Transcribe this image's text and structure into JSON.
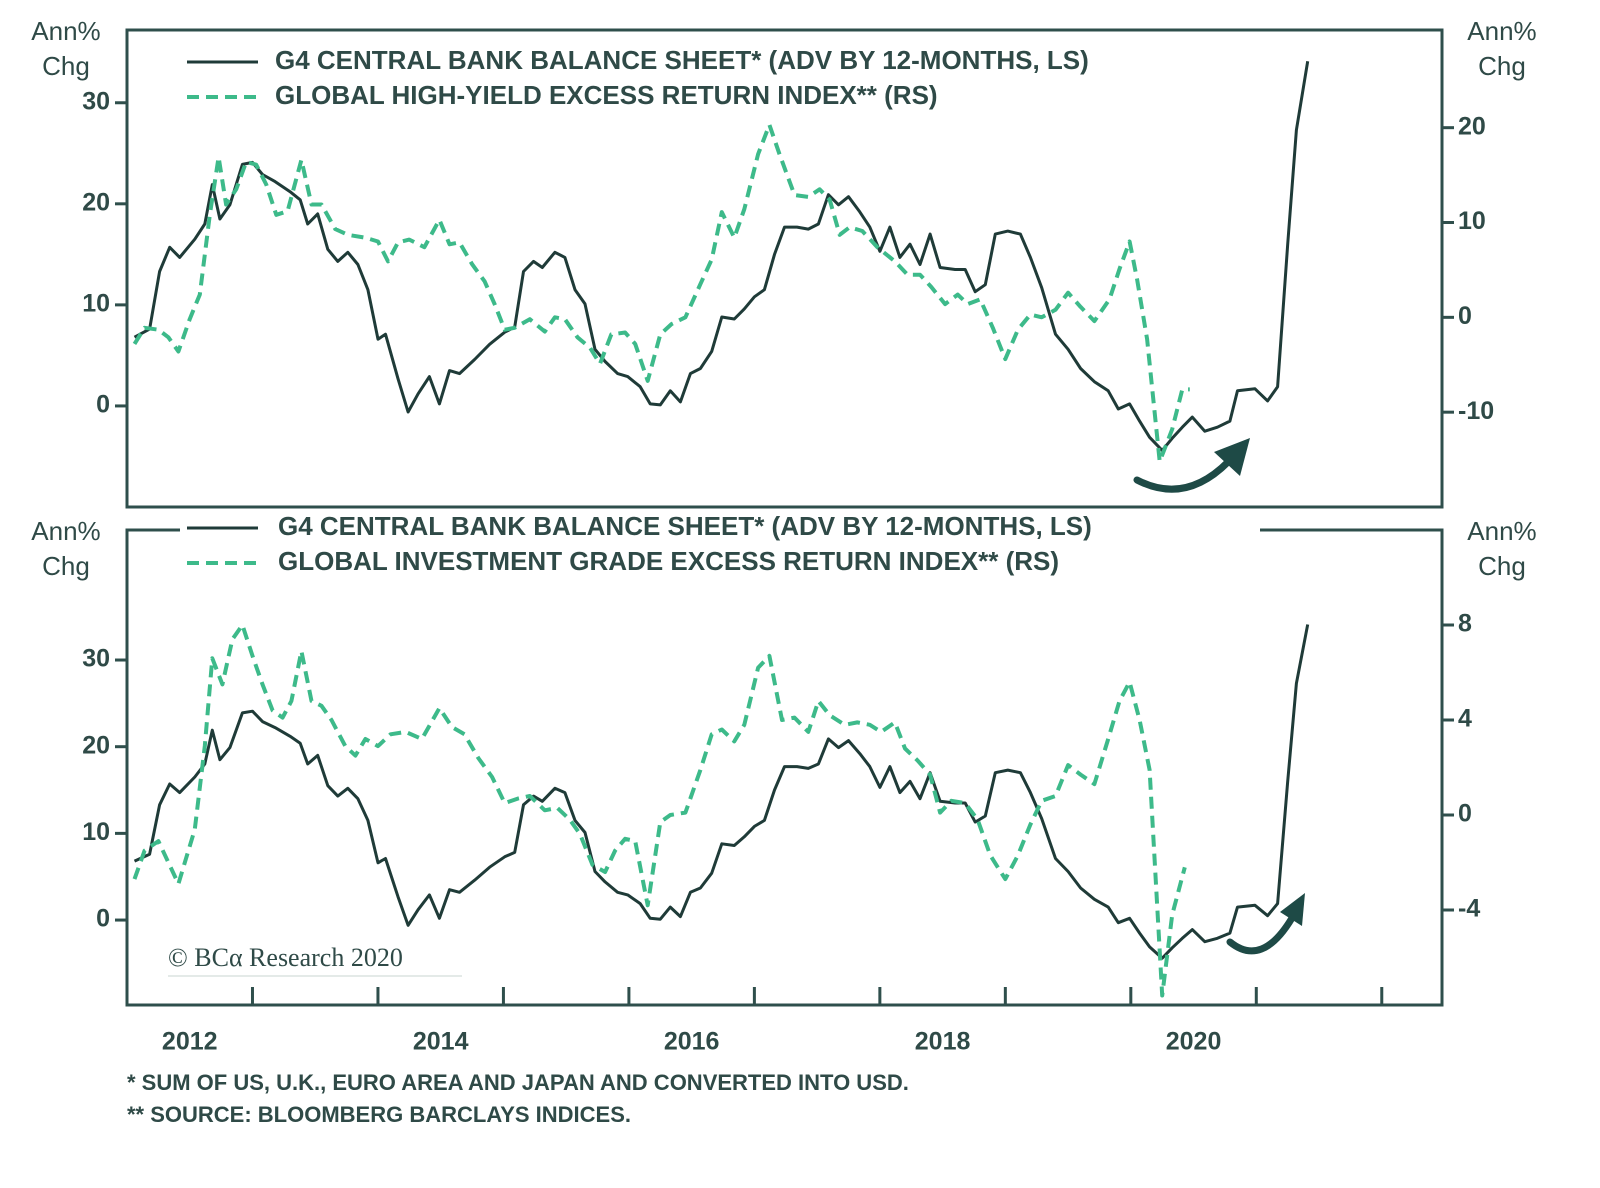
{
  "chart_data": [
    {
      "type": "line",
      "ylabel": [
        "Ann%",
        "Chg"
      ],
      "y2label": [
        "Ann%",
        "Chg"
      ],
      "xlim": [
        2012,
        2022.48
      ],
      "ylim": [
        -10,
        37.2
      ],
      "yticks": [
        0,
        10,
        20,
        30
      ],
      "y2lim": [
        -20,
        30.3
      ],
      "y2ticks": [
        -10,
        0,
        10,
        20
      ],
      "series": [
        {
          "name": "G4 CENTRAL BANK BALANCE SHEET* (ADV BY 12-MONTHS, LS)",
          "color": "#1f3b38",
          "style": "solid",
          "axis": "y",
          "x": [
            2012.06,
            2012.18,
            2012.26,
            2012.34,
            2012.42,
            2012.54,
            2012.62,
            2012.68,
            2012.74,
            2012.82,
            2012.92,
            2013.0,
            2013.08,
            2013.18,
            2013.3,
            2013.38,
            2013.44,
            2013.52,
            2013.6,
            2013.68,
            2013.76,
            2013.84,
            2013.92,
            2014.0,
            2014.06,
            2014.16,
            2014.24,
            2014.32,
            2014.41,
            2014.49,
            2014.57,
            2014.65,
            2014.77,
            2014.89,
            2015.01,
            2015.09,
            2015.16,
            2015.24,
            2015.31,
            2015.41,
            2015.49,
            2015.57,
            2015.65,
            2015.73,
            2015.81,
            2015.91,
            2015.99,
            2016.09,
            2016.17,
            2016.25,
            2016.33,
            2016.41,
            2016.49,
            2016.57,
            2016.66,
            2016.74,
            2016.84,
            2016.92,
            2017.0,
            2017.08,
            2017.16,
            2017.24,
            2017.34,
            2017.43,
            2017.51,
            2017.59,
            2017.67,
            2017.75,
            2017.84,
            2017.92,
            2018.0,
            2018.08,
            2018.16,
            2018.24,
            2018.32,
            2018.4,
            2018.48,
            2018.6,
            2018.68,
            2018.76,
            2018.84,
            2018.92,
            2019.02,
            2019.12,
            2019.2,
            2019.29,
            2019.4,
            2019.5,
            2019.6,
            2019.71,
            2019.82,
            2019.9,
            2019.99,
            2020.07,
            2020.15,
            2020.25,
            2020.33,
            2020.41,
            2020.49,
            2020.59,
            2020.69,
            2020.79,
            2020.85,
            2020.99,
            2021.09,
            2021.17,
            2021.25,
            2021.32,
            2021.41
          ],
          "values": [
            6.8,
            7.6,
            13.3,
            15.7,
            14.7,
            16.5,
            18,
            21.9,
            18.5,
            19.9,
            23.9,
            24.1,
            22.9,
            22.2,
            21.2,
            20.4,
            18,
            19,
            15.5,
            14.3,
            15.2,
            14,
            11.5,
            6.6,
            7.1,
            2.7,
            -0.6,
            1.2,
            2.9,
            0.2,
            3.5,
            3.2,
            4.6,
            6.1,
            7.3,
            7.8,
            13.3,
            14.3,
            13.7,
            15.2,
            14.7,
            11.5,
            10.1,
            5.6,
            4.4,
            3.2,
            2.9,
            1.9,
            0.2,
            0.1,
            1.5,
            0.4,
            3.2,
            3.7,
            5.4,
            8.8,
            8.6,
            9.6,
            10.8,
            11.5,
            15,
            17.7,
            17.7,
            17.5,
            18,
            20.9,
            19.9,
            20.7,
            19.2,
            17.7,
            15.3,
            17.7,
            14.7,
            16,
            14,
            17,
            13.7,
            13.5,
            13.5,
            11.3,
            12,
            17,
            17.3,
            17,
            14.7,
            11.7,
            7.1,
            5.6,
            3.7,
            2.4,
            1.5,
            -0.3,
            0.2,
            -1.5,
            -3.1,
            -4.4,
            -3.2,
            -2.1,
            -1.1,
            -2.5,
            -2.1,
            -1.5,
            1.5,
            1.7,
            0.5,
            1.9,
            16,
            27.3,
            34.1
          ]
        },
        {
          "name": "GLOBAL HIGH-YIELD EXCESS RETURN INDEX** (RS)",
          "color": "#3dba8a",
          "style": "dashed",
          "axis": "y2",
          "x": [
            2012.06,
            2012.14,
            2012.25,
            2012.33,
            2012.41,
            2012.5,
            2012.58,
            2012.66,
            2012.73,
            2012.79,
            2012.87,
            2012.95,
            2013.03,
            2013.11,
            2013.19,
            2013.28,
            2013.39,
            2013.47,
            2013.55,
            2013.66,
            2013.76,
            2013.9,
            2014.0,
            2014.08,
            2014.16,
            2014.25,
            2014.37,
            2014.49,
            2014.57,
            2014.65,
            2014.75,
            2014.85,
            2014.93,
            2015.01,
            2015.09,
            2015.21,
            2015.33,
            2015.41,
            2015.49,
            2015.59,
            2015.69,
            2015.77,
            2015.86,
            2015.97,
            2016.05,
            2016.15,
            2016.25,
            2016.34,
            2016.45,
            2016.57,
            2016.66,
            2016.74,
            2016.84,
            2016.92,
            2017.03,
            2017.12,
            2017.2,
            2017.32,
            2017.43,
            2017.52,
            2017.6,
            2017.68,
            2017.76,
            2017.86,
            2017.98,
            2018.12,
            2018.22,
            2018.32,
            2018.41,
            2018.52,
            2018.62,
            2018.7,
            2018.8,
            2018.9,
            2019.0,
            2019.1,
            2019.2,
            2019.29,
            2019.4,
            2019.5,
            2019.6,
            2019.71,
            2019.83,
            2019.91,
            2019.99,
            2020.05,
            2020.13,
            2020.23,
            2020.33,
            2020.41,
            2020.47
          ],
          "values": [
            -2.8,
            -1.1,
            -1.3,
            -2.1,
            -3.6,
            -0.2,
            2.4,
            10.8,
            16.9,
            11.9,
            13.5,
            16.4,
            16.1,
            14,
            10.8,
            11.2,
            16.6,
            11.9,
            11.9,
            9.3,
            8.7,
            8.4,
            8,
            5.9,
            7.9,
            8.2,
            7.4,
            10.3,
            7.7,
            7.9,
            5.6,
            3.8,
            1.4,
            -1.3,
            -1.1,
            -0.2,
            -1.5,
            0,
            -0.2,
            -2.1,
            -3.2,
            -4.9,
            -1.8,
            -1.6,
            -2.8,
            -6.7,
            -1.8,
            -0.7,
            0,
            3.5,
            6.1,
            11.1,
            8.4,
            11.4,
            17.2,
            20.3,
            17.2,
            12.9,
            12.7,
            13.5,
            12.4,
            8.7,
            9.5,
            9.1,
            7.4,
            5.9,
            4.5,
            4.5,
            3.2,
            1.4,
            2.4,
            1.4,
            1.9,
            -1.1,
            -4.4,
            -1.3,
            0.3,
            0,
            0.8,
            2.6,
            1.1,
            -0.4,
            1.9,
            5.1,
            8,
            4,
            -2.3,
            -15.2,
            -11.8,
            -7.6,
            -7.6
          ]
        }
      ]
    },
    {
      "type": "line",
      "ylabel": [
        "Ann%",
        "Chg"
      ],
      "y2label": [
        "Ann%",
        "Chg"
      ],
      "xlim": [
        2012,
        2022.48
      ],
      "xticks": [
        2012,
        2013,
        2014,
        2015,
        2016,
        2017,
        2018,
        2019,
        2020,
        2021,
        2022
      ],
      "xlabels": [
        2012,
        2014,
        2016,
        2018,
        2020
      ],
      "ylim": [
        -9.8,
        45
      ],
      "yticks": [
        0,
        10,
        20,
        30
      ],
      "y2lim": [
        -8,
        12
      ],
      "y2ticks": [
        -4,
        0,
        4,
        8
      ],
      "series": [
        {
          "name": "G4 CENTRAL BANK BALANCE SHEET* (ADV BY 12-MONTHS, LS)",
          "color": "#1f3b38",
          "style": "solid",
          "axis": "y",
          "x": [
            2012.06,
            2012.18,
            2012.26,
            2012.34,
            2012.42,
            2012.54,
            2012.62,
            2012.68,
            2012.74,
            2012.82,
            2012.92,
            2013.0,
            2013.08,
            2013.18,
            2013.3,
            2013.38,
            2013.44,
            2013.52,
            2013.6,
            2013.68,
            2013.76,
            2013.84,
            2013.92,
            2014.0,
            2014.06,
            2014.16,
            2014.24,
            2014.32,
            2014.41,
            2014.49,
            2014.57,
            2014.65,
            2014.77,
            2014.89,
            2015.01,
            2015.09,
            2015.16,
            2015.24,
            2015.31,
            2015.41,
            2015.49,
            2015.57,
            2015.65,
            2015.73,
            2015.81,
            2015.91,
            2015.99,
            2016.09,
            2016.17,
            2016.25,
            2016.33,
            2016.41,
            2016.49,
            2016.57,
            2016.66,
            2016.74,
            2016.84,
            2016.92,
            2017.0,
            2017.08,
            2017.16,
            2017.24,
            2017.34,
            2017.43,
            2017.51,
            2017.59,
            2017.67,
            2017.75,
            2017.84,
            2017.92,
            2018.0,
            2018.08,
            2018.16,
            2018.24,
            2018.32,
            2018.4,
            2018.48,
            2018.6,
            2018.68,
            2018.76,
            2018.84,
            2018.92,
            2019.02,
            2019.12,
            2019.2,
            2019.29,
            2019.4,
            2019.5,
            2019.6,
            2019.71,
            2019.82,
            2019.9,
            2019.99,
            2020.07,
            2020.15,
            2020.25,
            2020.33,
            2020.41,
            2020.49,
            2020.59,
            2020.69,
            2020.79,
            2020.85,
            2020.99,
            2021.09,
            2021.17,
            2021.25,
            2021.32,
            2021.41
          ],
          "values": [
            6.8,
            7.6,
            13.3,
            15.7,
            14.7,
            16.5,
            18,
            21.9,
            18.5,
            19.9,
            23.9,
            24.1,
            22.9,
            22.2,
            21.2,
            20.4,
            18,
            19,
            15.5,
            14.3,
            15.2,
            14,
            11.5,
            6.6,
            7.1,
            2.7,
            -0.6,
            1.2,
            2.9,
            0.2,
            3.5,
            3.2,
            4.6,
            6.1,
            7.3,
            7.8,
            13.3,
            14.3,
            13.7,
            15.2,
            14.7,
            11.5,
            10.1,
            5.6,
            4.4,
            3.2,
            2.9,
            1.9,
            0.2,
            0.1,
            1.5,
            0.4,
            3.2,
            3.7,
            5.4,
            8.8,
            8.6,
            9.6,
            10.8,
            11.5,
            15,
            17.7,
            17.7,
            17.5,
            18,
            20.9,
            19.9,
            20.7,
            19.2,
            17.7,
            15.3,
            17.7,
            14.7,
            16,
            14,
            17,
            13.7,
            13.5,
            13.5,
            11.3,
            12,
            17,
            17.3,
            17,
            14.7,
            11.7,
            7.1,
            5.6,
            3.7,
            2.4,
            1.5,
            -0.3,
            0.2,
            -1.5,
            -3.1,
            -4.4,
            -3.2,
            -2.1,
            -1.1,
            -2.5,
            -2.1,
            -1.5,
            1.5,
            1.7,
            0.5,
            1.9,
            16,
            27.3,
            34.1
          ]
        },
        {
          "name": "GLOBAL INVESTMENT GRADE EXCESS RETURN INDEX** (RS)",
          "color": "#3dba8a",
          "style": "dashed",
          "axis": "y2",
          "x": [
            2012.06,
            2012.14,
            2012.25,
            2012.33,
            2012.41,
            2012.54,
            2012.62,
            2012.68,
            2012.76,
            2012.84,
            2012.92,
            2013.0,
            2013.08,
            2013.16,
            2013.24,
            2013.31,
            2013.39,
            2013.47,
            2013.55,
            2013.63,
            2013.74,
            2013.82,
            2013.9,
            2014.0,
            2014.1,
            2014.22,
            2014.35,
            2014.49,
            2014.59,
            2014.69,
            2014.8,
            2014.91,
            2015.01,
            2015.12,
            2015.21,
            2015.33,
            2015.43,
            2015.53,
            2015.61,
            2015.71,
            2015.81,
            2015.89,
            2015.97,
            2016.05,
            2016.15,
            2016.25,
            2016.33,
            2016.45,
            2016.57,
            2016.66,
            2016.74,
            2016.84,
            2016.92,
            2017.03,
            2017.12,
            2017.22,
            2017.32,
            2017.43,
            2017.51,
            2017.6,
            2017.72,
            2017.82,
            2017.92,
            2018.01,
            2018.12,
            2018.2,
            2018.3,
            2018.4,
            2018.48,
            2018.57,
            2018.68,
            2018.78,
            2018.88,
            2019.0,
            2019.1,
            2019.2,
            2019.29,
            2019.4,
            2019.5,
            2019.6,
            2019.71,
            2019.82,
            2019.91,
            2019.99,
            2020.07,
            2020.15,
            2020.25,
            2020.33,
            2020.43
          ],
          "values": [
            -2.7,
            -1.5,
            -1.1,
            -2,
            -2.9,
            -0.6,
            2.9,
            6.6,
            5.5,
            7.4,
            8,
            6.7,
            5.5,
            4.4,
            4.1,
            4.8,
            6.9,
            4.8,
            4.6,
            4,
            2.9,
            2.5,
            3.2,
            2.9,
            3.4,
            3.5,
            3.2,
            4.5,
            3.7,
            3.4,
            2.4,
            1.6,
            0.5,
            0.7,
            0.8,
            0.2,
            0.3,
            -0.2,
            -0.8,
            -2.1,
            -2.4,
            -1.5,
            -1,
            -1.1,
            -3.8,
            -0.3,
            0,
            0.1,
            1.9,
            3.4,
            3.6,
            3.1,
            3.8,
            6.2,
            6.7,
            4,
            4.1,
            3.5,
            4.8,
            4.2,
            3.8,
            3.9,
            3.8,
            3.5,
            3.9,
            2.8,
            2.3,
            1.7,
            0.1,
            0.6,
            0.5,
            -0.2,
            -1.7,
            -2.7,
            -1.7,
            -0.4,
            0.6,
            0.8,
            2.1,
            1.7,
            1.3,
            3.2,
            4.8,
            5.6,
            4,
            1.9,
            -7.6,
            -4.2,
            -2.2
          ]
        }
      ]
    }
  ],
  "copyright": "© BCα Research 2020",
  "footnotes": [
    "* SUM OF US, U.K., EURO AREA AND JAPAN AND CONVERTED INTO USD.",
    "** SOURCE: BLOOMBERG BARCLAYS INDICES."
  ]
}
